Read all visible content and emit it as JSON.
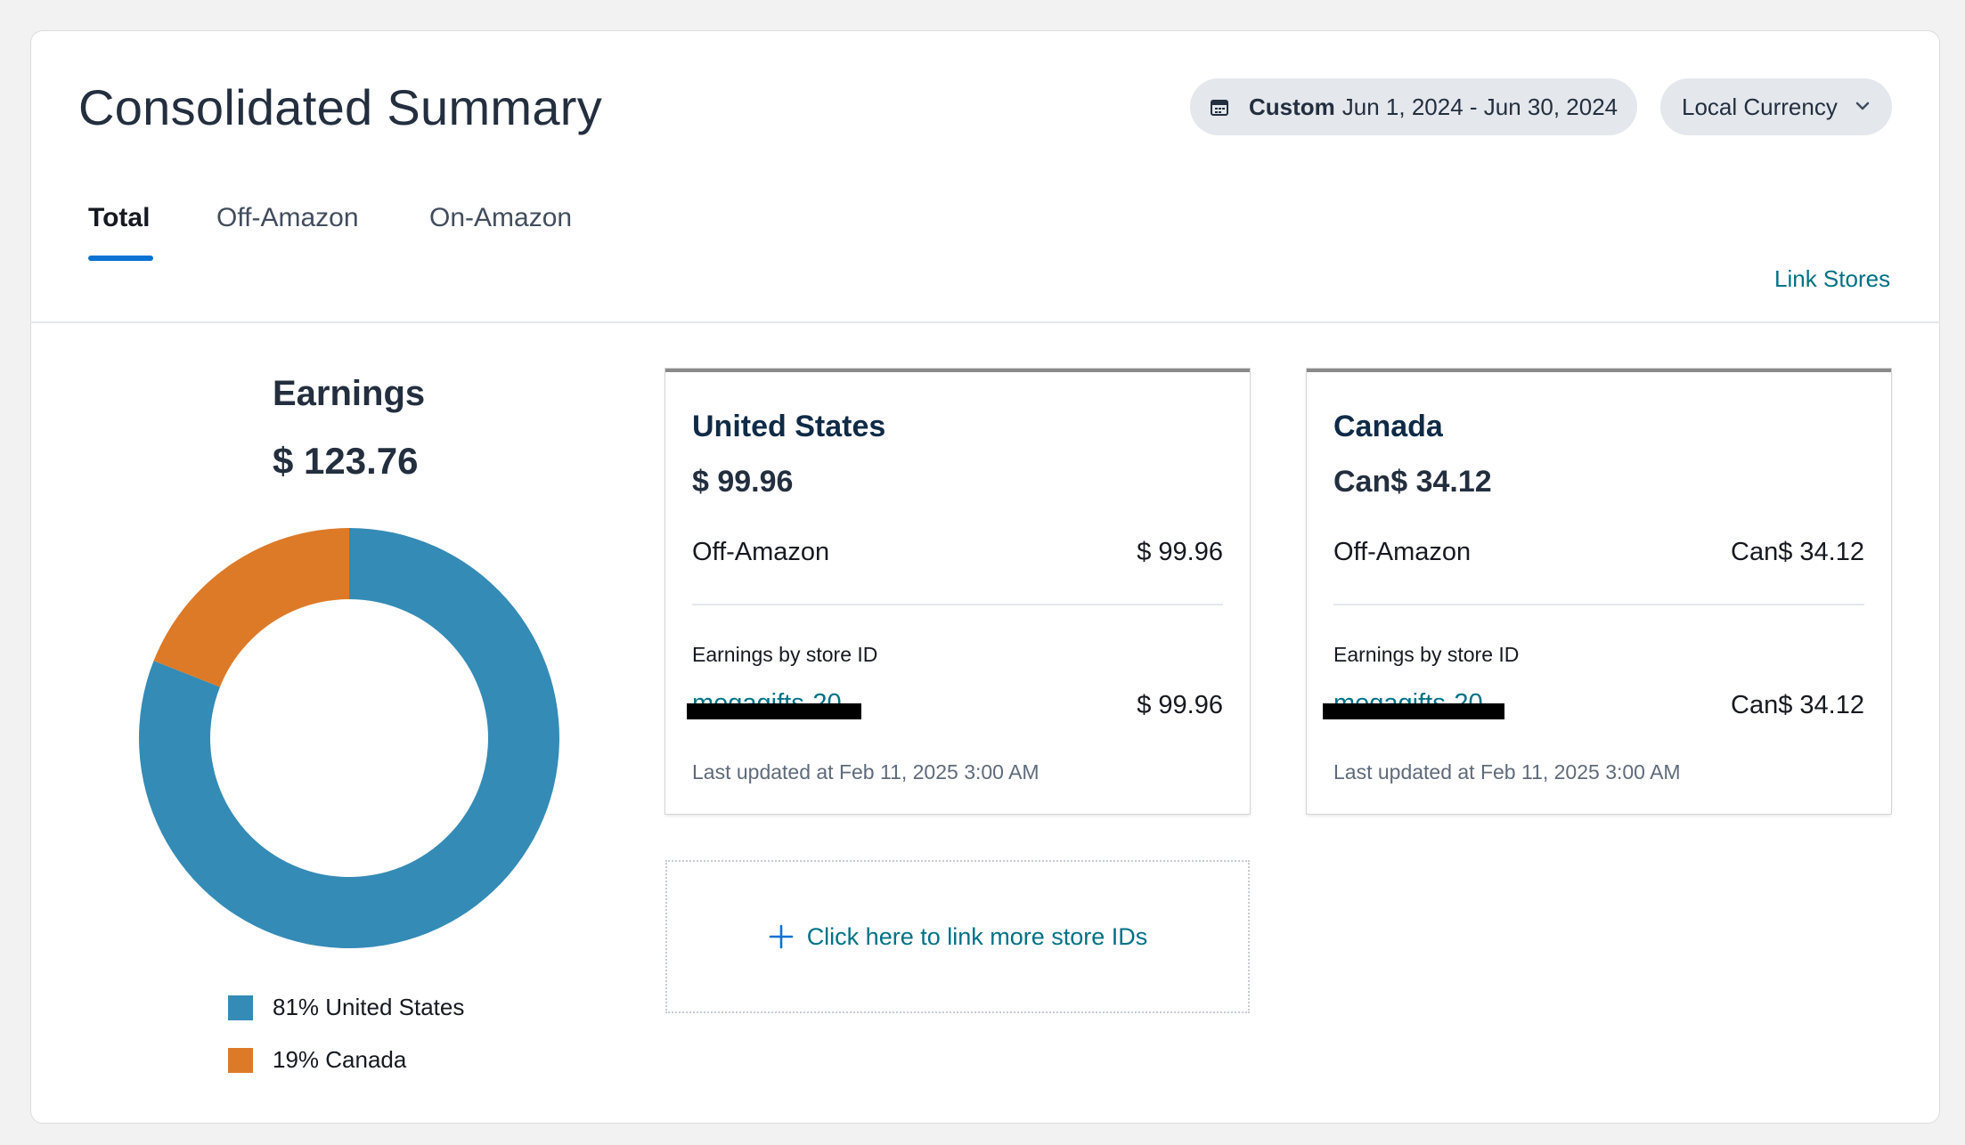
{
  "header": {
    "title": "Consolidated Summary",
    "date_range": {
      "prefix": "Custom",
      "range": "Jun 1, 2024 - Jun 30, 2024",
      "icon": "calendar-icon"
    },
    "currency": {
      "label": "Local Currency",
      "icon": "chevron-down-icon"
    }
  },
  "tabs": [
    {
      "label": "Total",
      "active": true
    },
    {
      "label": "Off-Amazon",
      "active": false
    },
    {
      "label": "On-Amazon",
      "active": false
    }
  ],
  "link_stores": "Link Stores",
  "earnings": {
    "title": "Earnings",
    "total": "$ 123.76",
    "chart_data": {
      "type": "pie",
      "categories": [
        "United States",
        "Canada"
      ],
      "values": [
        81,
        19
      ],
      "colors": [
        "#348bb6",
        "#dd7a28"
      ],
      "legend": [
        "81% United States",
        "19% Canada"
      ]
    }
  },
  "cards": [
    {
      "country": "United States",
      "amount": "$ 99.96",
      "row_label": "Off-Amazon",
      "row_value": "$ 99.96",
      "by_store_label": "Earnings by store ID",
      "store_id": "megagifts-20",
      "store_value": "$ 99.96",
      "updated": "Last updated at Feb 11, 2025 3:00 AM"
    },
    {
      "country": "Canada",
      "amount": "Can$ 34.12",
      "row_label": "Off-Amazon",
      "row_value": "Can$ 34.12",
      "by_store_label": "Earnings by store ID",
      "store_id": "megagifts-20",
      "store_value": "Can$ 34.12",
      "updated": "Last updated at Feb 11, 2025 3:00 AM"
    }
  ],
  "link_more": {
    "label": "Click here to link more store IDs",
    "icon": "plus-icon"
  },
  "colors": {
    "accent": "#0972d3",
    "link": "#007185",
    "us": "#348bb6",
    "canada": "#dd7a28"
  }
}
